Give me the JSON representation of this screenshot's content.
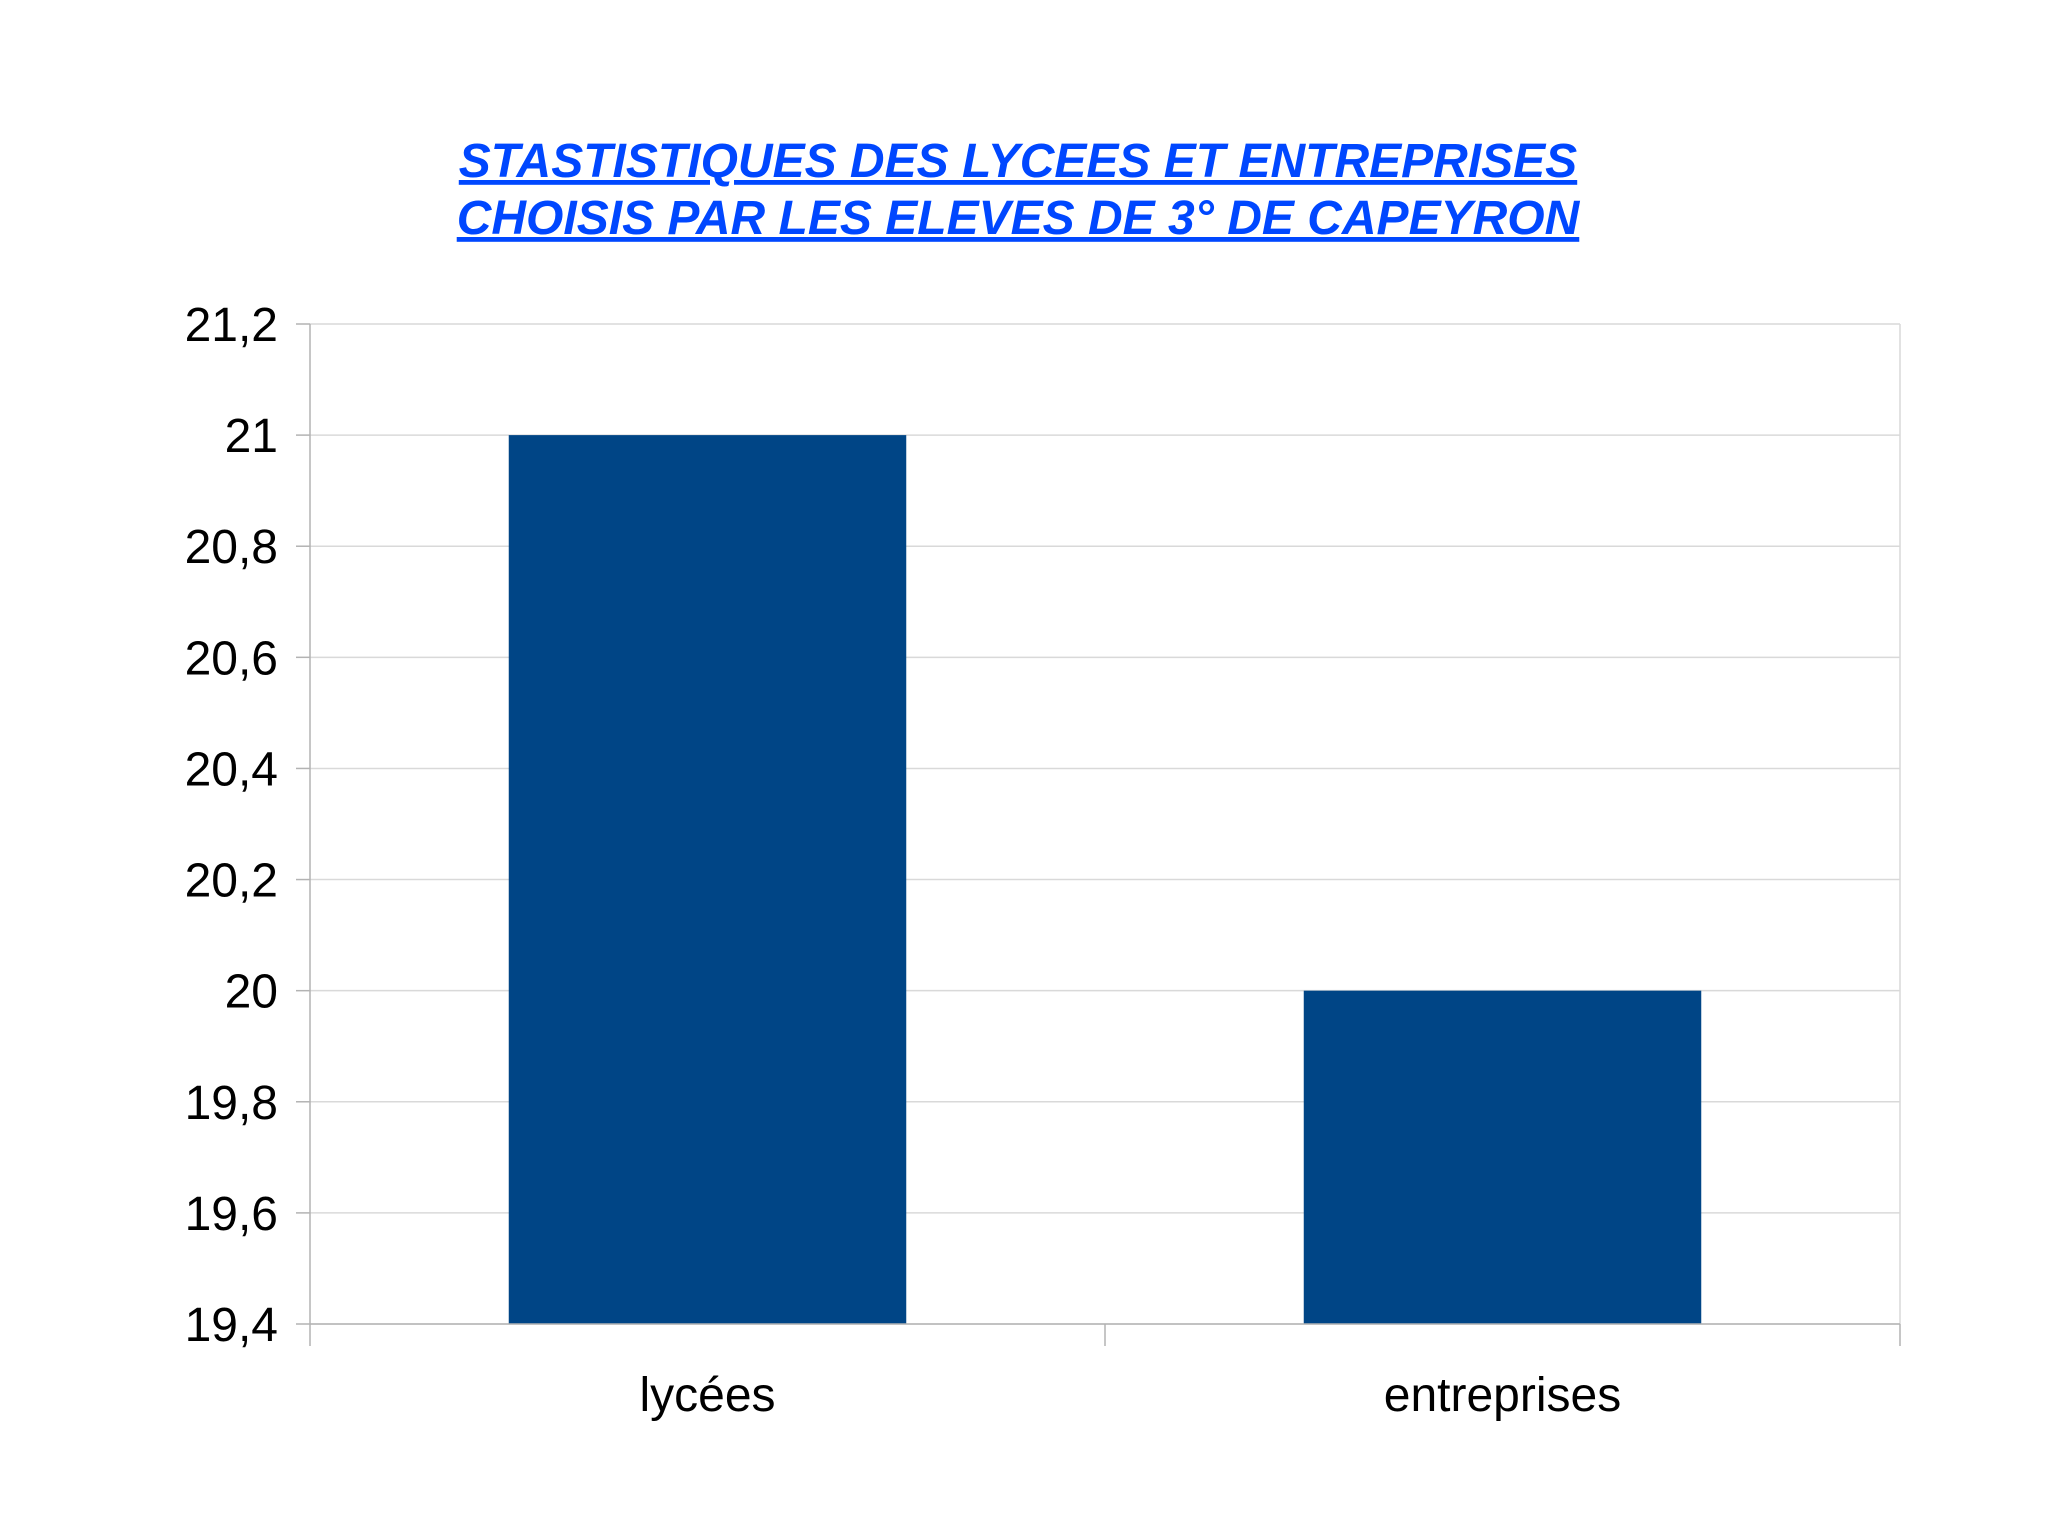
{
  "chart_data": {
    "type": "bar",
    "title_lines": [
      "STASTISTIQUES DES LYCEES ET ENTREPRISES ",
      "CHOISIS PAR LES ELEVES DE 3° DE CAPEYRON "
    ],
    "categories": [
      "lycées",
      "entreprises"
    ],
    "values": [
      21,
      20
    ],
    "ylim": [
      19.4,
      21.2
    ],
    "yticks": [
      "19,4",
      "19,6",
      "19,8",
      "20",
      "20,2",
      "20,4",
      "20,6",
      "20,8",
      "21",
      "21,2"
    ],
    "ytick_values": [
      19.4,
      19.6,
      19.8,
      20,
      20.2,
      20.4,
      20.6,
      20.8,
      21,
      21.2
    ],
    "grid": true,
    "legend": "none",
    "colors": {
      "bar": "#004586",
      "title": "#0047ff",
      "grid": "#d9d9d9",
      "axis": "#b3b3b3",
      "text": "#000000"
    }
  }
}
